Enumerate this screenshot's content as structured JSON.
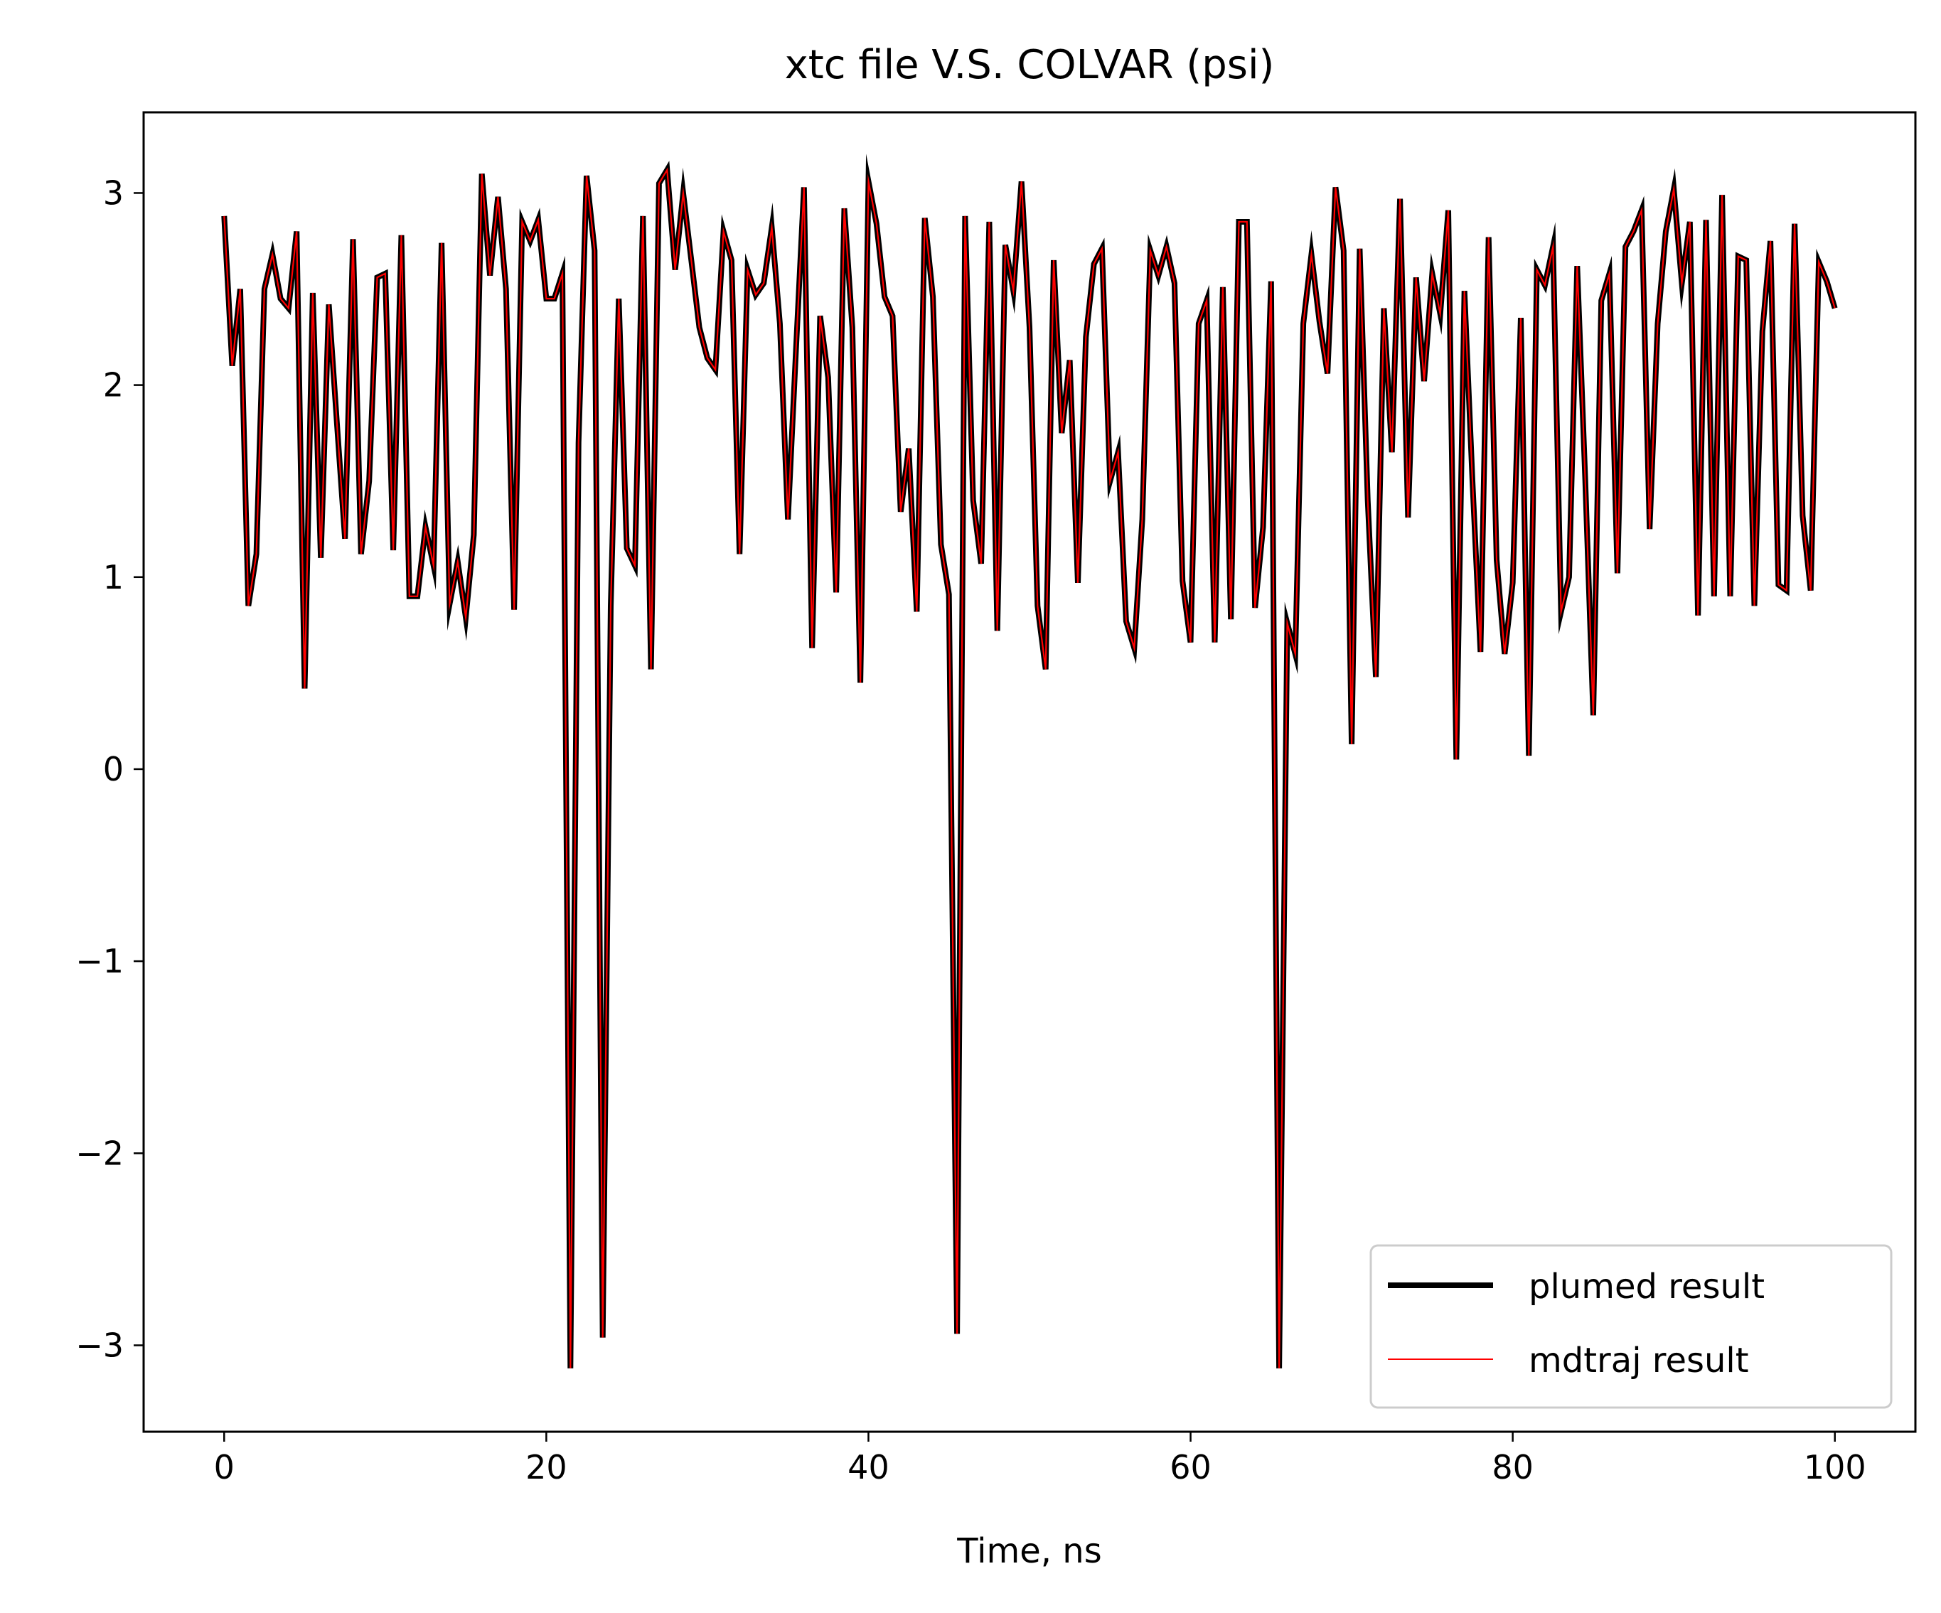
{
  "chart_data": {
    "type": "line",
    "title": "xtc file V.S. COLVAR (psi)",
    "xlabel": "Time, ns",
    "ylabel": "",
    "xlim": [
      -5,
      105
    ],
    "ylim": [
      -3.45,
      3.42
    ],
    "xticks": [
      0,
      20,
      40,
      60,
      80,
      100
    ],
    "yticks": [
      -3,
      -2,
      -1,
      0,
      1,
      2,
      3
    ],
    "xtick_labels": [
      "0",
      "20",
      "40",
      "60",
      "80",
      "100"
    ],
    "ytick_labels": [
      "−3",
      "−2",
      "−1",
      "0",
      "1",
      "2",
      "3"
    ],
    "grid": false,
    "legend_position": "lower-right",
    "x": [
      0.0,
      0.5,
      1.0,
      1.5,
      2.0,
      2.5,
      3.0,
      3.5,
      4.0,
      4.5,
      5.0,
      5.5,
      6.0,
      6.5,
      7.0,
      7.5,
      8.0,
      8.5,
      9.0,
      9.5,
      10.0,
      10.5,
      11.0,
      11.5,
      12.0,
      12.5,
      13.0,
      13.5,
      14.0,
      14.5,
      15.0,
      15.5,
      16.0,
      16.5,
      17.0,
      17.5,
      18.0,
      18.5,
      19.0,
      19.5,
      20.0,
      20.5,
      21.0,
      21.5,
      22.0,
      22.5,
      23.0,
      23.5,
      24.0,
      24.5,
      25.0,
      25.5,
      26.0,
      26.5,
      27.0,
      27.5,
      28.0,
      28.5,
      29.0,
      29.5,
      30.0,
      30.5,
      31.0,
      31.5,
      32.0,
      32.5,
      33.0,
      33.5,
      34.0,
      34.5,
      35.0,
      35.5,
      36.0,
      36.5,
      37.0,
      37.5,
      38.0,
      38.5,
      39.0,
      39.5,
      40.0,
      40.5,
      41.0,
      41.5,
      42.0,
      42.5,
      43.0,
      43.5,
      44.0,
      44.5,
      45.0,
      45.5,
      46.0,
      46.5,
      47.0,
      47.5,
      48.0,
      48.5,
      49.0,
      49.5,
      50.0,
      50.5,
      51.0,
      51.5,
      52.0,
      52.5,
      53.0,
      53.5,
      54.0,
      54.5,
      55.0,
      55.5,
      56.0,
      56.5,
      57.0,
      57.5,
      58.0,
      58.5,
      59.0,
      59.5,
      60.0,
      60.5,
      61.0,
      61.5,
      62.0,
      62.5,
      63.0,
      63.5,
      64.0,
      64.5,
      65.0,
      65.5,
      66.0,
      66.5,
      67.0,
      67.5,
      68.0,
      68.5,
      69.0,
      69.5,
      70.0,
      70.5,
      71.0,
      71.5,
      72.0,
      72.5,
      73.0,
      73.5,
      74.0,
      74.5,
      75.0,
      75.5,
      76.0,
      76.5,
      77.0,
      77.5,
      78.0,
      78.5,
      79.0,
      79.5,
      80.0,
      80.5,
      81.0,
      81.5,
      82.0,
      82.5,
      83.0,
      83.5,
      84.0,
      84.5,
      85.0,
      85.5,
      86.0,
      86.5,
      87.0,
      87.5,
      88.0,
      88.5,
      89.0,
      89.5,
      90.0,
      90.5,
      91.0,
      91.5,
      92.0,
      92.5,
      93.0,
      93.5,
      94.0,
      94.5,
      95.0,
      95.5,
      96.0,
      96.5,
      97.0,
      97.5,
      98.0,
      98.5,
      99.0,
      99.5,
      100.0
    ],
    "series": [
      {
        "name": "plumed result",
        "color": "#000000",
        "linewidth": "thick",
        "values": [
          2.88,
          2.1,
          2.5,
          0.85,
          1.12,
          2.5,
          2.68,
          2.45,
          2.4,
          2.8,
          0.42,
          2.48,
          1.1,
          2.42,
          1.8,
          1.2,
          2.76,
          1.12,
          1.5,
          2.56,
          2.58,
          1.14,
          2.78,
          0.9,
          0.9,
          1.26,
          1.06,
          2.74,
          0.86,
          1.08,
          0.79,
          1.22,
          3.1,
          2.57,
          2.98,
          2.5,
          0.83,
          2.85,
          2.75,
          2.86,
          2.45,
          2.45,
          2.58,
          -3.12,
          1.7,
          3.09,
          2.7,
          -2.96,
          0.85,
          2.45,
          1.15,
          1.06,
          2.88,
          0.52,
          3.05,
          3.12,
          2.6,
          3.0,
          2.65,
          2.3,
          2.14,
          2.08,
          2.8,
          2.65,
          1.12,
          2.6,
          2.47,
          2.53,
          2.82,
          2.32,
          1.3,
          2.18,
          3.03,
          0.63,
          2.36,
          2.04,
          0.92,
          2.92,
          2.3,
          0.45,
          3.06,
          2.84,
          2.46,
          2.36,
          1.34,
          1.67,
          0.82,
          2.87,
          2.46,
          1.17,
          0.91,
          -2.94,
          2.88,
          1.4,
          1.07,
          2.85,
          0.72,
          2.73,
          2.49,
          3.06,
          2.3,
          0.85,
          0.52,
          2.65,
          1.75,
          2.13,
          0.97,
          2.25,
          2.63,
          2.71,
          1.5,
          1.65,
          0.77,
          0.63,
          1.3,
          2.7,
          2.57,
          2.72,
          2.53,
          0.98,
          0.66,
          2.32,
          2.44,
          0.66,
          2.51,
          0.78,
          2.85,
          2.85,
          0.84,
          1.26,
          2.54,
          -3.12,
          0.76,
          0.6,
          2.32,
          2.68,
          2.33,
          2.06,
          3.03,
          2.7,
          0.13,
          2.71,
          1.4,
          0.48,
          2.4,
          1.65,
          2.97,
          1.31,
          2.56,
          2.02,
          2.58,
          2.37,
          2.91,
          0.05,
          2.49,
          1.5,
          0.61,
          2.77,
          1.09,
          0.6,
          0.97,
          2.35,
          0.07,
          2.6,
          2.52,
          2.72,
          0.82,
          1.0,
          2.62,
          1.51,
          0.28,
          2.44,
          2.58,
          1.02,
          2.72,
          2.8,
          2.91,
          1.25,
          2.32,
          2.8,
          3.02,
          2.53,
          2.85,
          0.8,
          2.86,
          0.9,
          2.99,
          0.9,
          2.67,
          2.65,
          0.85,
          2.28,
          2.75,
          0.96,
          0.93,
          2.84,
          1.32,
          0.93,
          2.64,
          2.54,
          2.4
        ]
      },
      {
        "name": "mdtraj result",
        "color": "#ff0000",
        "linewidth": "thin",
        "values": [
          2.88,
          2.1,
          2.5,
          0.85,
          1.12,
          2.5,
          2.68,
          2.45,
          2.4,
          2.8,
          0.42,
          2.48,
          1.1,
          2.42,
          1.8,
          1.2,
          2.76,
          1.12,
          1.5,
          2.56,
          2.58,
          1.14,
          2.78,
          0.9,
          0.9,
          1.26,
          1.06,
          2.74,
          0.86,
          1.08,
          0.79,
          1.22,
          3.1,
          2.57,
          2.98,
          2.5,
          0.83,
          2.85,
          2.75,
          2.86,
          2.45,
          2.45,
          2.58,
          -3.12,
          1.7,
          3.09,
          2.7,
          -2.96,
          0.85,
          2.45,
          1.15,
          1.06,
          2.88,
          0.52,
          3.05,
          3.12,
          2.6,
          3.0,
          2.65,
          2.3,
          2.14,
          2.08,
          2.8,
          2.65,
          1.12,
          2.6,
          2.47,
          2.53,
          2.82,
          2.32,
          1.3,
          2.18,
          3.03,
          0.63,
          2.36,
          2.04,
          0.92,
          2.92,
          2.3,
          0.45,
          3.06,
          2.84,
          2.46,
          2.36,
          1.34,
          1.67,
          0.82,
          2.87,
          2.46,
          1.17,
          0.91,
          -2.94,
          2.88,
          1.4,
          1.07,
          2.85,
          0.72,
          2.73,
          2.49,
          3.06,
          2.3,
          0.85,
          0.52,
          2.65,
          1.75,
          2.13,
          0.97,
          2.25,
          2.63,
          2.71,
          1.5,
          1.65,
          0.77,
          0.63,
          1.3,
          2.7,
          2.57,
          2.72,
          2.53,
          0.98,
          0.66,
          2.32,
          2.44,
          0.66,
          2.51,
          0.78,
          2.85,
          2.85,
          0.84,
          1.26,
          2.54,
          -3.12,
          0.76,
          0.6,
          2.32,
          2.68,
          2.33,
          2.06,
          3.03,
          2.7,
          0.13,
          2.71,
          1.4,
          0.48,
          2.4,
          1.65,
          2.97,
          1.31,
          2.56,
          2.02,
          2.58,
          2.37,
          2.91,
          0.05,
          2.49,
          1.5,
          0.61,
          2.77,
          1.09,
          0.6,
          0.97,
          2.35,
          0.07,
          2.6,
          2.52,
          2.72,
          0.82,
          1.0,
          2.62,
          1.51,
          0.28,
          2.44,
          2.58,
          1.02,
          2.72,
          2.8,
          2.91,
          1.25,
          2.32,
          2.8,
          3.02,
          2.53,
          2.85,
          0.8,
          2.86,
          0.9,
          2.99,
          0.9,
          2.67,
          2.65,
          0.85,
          2.28,
          2.75,
          0.96,
          0.93,
          2.84,
          1.32,
          0.93,
          2.64,
          2.54,
          2.4
        ]
      }
    ]
  }
}
